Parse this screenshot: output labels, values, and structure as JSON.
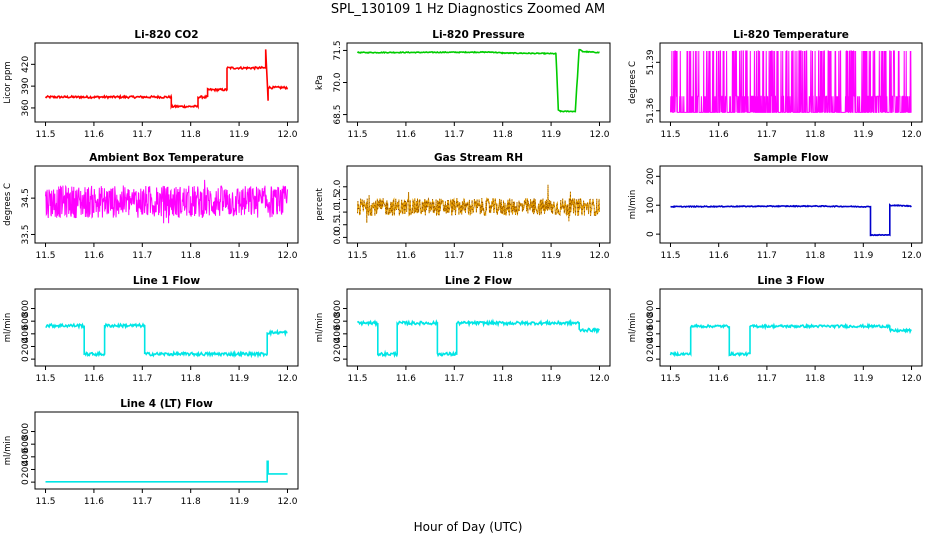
{
  "figure": {
    "title": "SPL_130109  1 Hz Diagnostics Zoomed AM",
    "xlabel": "Hour of Day (UTC)"
  },
  "chart_data": [
    {
      "type": "line",
      "title": "Li-820 CO2",
      "ylabel": "Licor ppm",
      "color": "#ff0000",
      "xlim": [
        11.5,
        12.0
      ],
      "ylim": [
        345,
        445
      ],
      "xticks": [
        11.5,
        11.6,
        11.7,
        11.8,
        11.9,
        12.0
      ],
      "yticks": [
        360,
        390,
        420
      ],
      "noise": 1.5,
      "series": [
        {
          "x": [
            11.5,
            11.76,
            11.76,
            11.815,
            11.815,
            11.835,
            11.835,
            11.875,
            11.875,
            11.955,
            11.955,
            11.96,
            11.96,
            12.0
          ],
          "y": [
            375,
            375,
            362,
            362,
            375,
            375,
            385,
            385,
            415,
            415,
            440,
            370,
            388,
            388
          ]
        }
      ]
    },
    {
      "type": "line",
      "title": "Li-820 Pressure",
      "ylabel": "kPa",
      "color": "#00cc00",
      "xlim": [
        11.5,
        12.0
      ],
      "ylim": [
        68.3,
        71.7
      ],
      "xticks": [
        11.5,
        11.6,
        11.7,
        11.8,
        11.9,
        12.0
      ],
      "yticks": [
        68.5,
        70.0,
        71.5
      ],
      "noise": 0.02,
      "series": [
        {
          "x": [
            11.5,
            11.78,
            11.8,
            11.91,
            11.915,
            11.92,
            11.95,
            11.958,
            11.965,
            12.0
          ],
          "y": [
            71.4,
            71.42,
            71.38,
            71.35,
            68.7,
            68.65,
            68.65,
            71.55,
            71.45,
            71.4
          ]
        }
      ]
    },
    {
      "type": "line",
      "title": "Li-820 Temperature",
      "ylabel": "degrees C",
      "color": "#ff00ff",
      "xlim": [
        11.5,
        12.0
      ],
      "ylim": [
        51.355,
        51.4
      ],
      "xticks": [
        11.5,
        11.6,
        11.7,
        11.8,
        11.9,
        12.0
      ],
      "yticks": [
        51.36,
        51.39
      ],
      "pattern": "quantized",
      "levels": [
        51.359,
        51.369,
        51.397
      ],
      "series": []
    },
    {
      "type": "line",
      "title": "Ambient Box Temperature",
      "ylabel": "degrees C",
      "color": "#ff00ff",
      "xlim": [
        11.5,
        12.0
      ],
      "ylim": [
        33.35,
        35.3
      ],
      "xticks": [
        11.5,
        11.6,
        11.7,
        11.8,
        11.9,
        12.0
      ],
      "yticks": [
        33.5,
        34.5
      ],
      "pattern": "band",
      "center": 34.4,
      "amp": 0.45,
      "spike": 0.35,
      "series": []
    },
    {
      "type": "line",
      "title": "Gas Stream RH",
      "ylabel": "percent",
      "color": "#e6a000",
      "marker_color": "#884400",
      "xlim": [
        11.5,
        12.0
      ],
      "ylim": [
        -0.1,
        2.7
      ],
      "xticks": [
        11.5,
        11.6,
        11.7,
        11.8,
        11.9,
        12.0
      ],
      "yticks": [
        0.0,
        0.5,
        1.0,
        1.5,
        2.0
      ],
      "pattern": "band",
      "center": 1.2,
      "amp": 0.35,
      "spike": 0.9,
      "series": []
    },
    {
      "type": "line",
      "title": "Sample Flow",
      "ylabel": "ml/min",
      "color": "#0000cc",
      "xlim": [
        11.5,
        12.0
      ],
      "ylim": [
        -20,
        225
      ],
      "xticks": [
        11.5,
        11.6,
        11.7,
        11.8,
        11.9,
        12.0
      ],
      "yticks": [
        0,
        100,
        200
      ],
      "noise": 1.5,
      "series": [
        {
          "x": [
            11.5,
            11.8,
            11.9,
            11.915,
            11.915,
            11.955,
            11.955,
            12.0
          ],
          "y": [
            95,
            97,
            95,
            95,
            -3,
            -3,
            100,
            97
          ]
        }
      ]
    },
    {
      "type": "line",
      "title": "Line 1 Flow",
      "ylabel": "ml/min",
      "color": "#00e5e5",
      "xlim": [
        11.5,
        12.0
      ],
      "ylim": [
        -60,
        1060
      ],
      "xticks": [
        11.5,
        11.6,
        11.7,
        11.8,
        11.9,
        12.0
      ],
      "yticks": [
        0,
        200,
        400,
        600,
        800
      ],
      "noise": 25,
      "series": [
        {
          "x": [
            11.5,
            11.58,
            11.58,
            11.622,
            11.622,
            11.705,
            11.705,
            11.958,
            11.958,
            12.0
          ],
          "y": [
            530,
            530,
            80,
            80,
            530,
            530,
            80,
            80,
            420,
            420
          ]
        }
      ]
    },
    {
      "type": "line",
      "title": "Line 2 Flow",
      "ylabel": "ml/min",
      "color": "#00e5e5",
      "xlim": [
        11.5,
        12.0
      ],
      "ylim": [
        -60,
        1060
      ],
      "xticks": [
        11.5,
        11.6,
        11.7,
        11.8,
        11.9,
        12.0
      ],
      "yticks": [
        0,
        200,
        400,
        600,
        800
      ],
      "noise": 25,
      "series": [
        {
          "x": [
            11.5,
            11.542,
            11.542,
            11.582,
            11.582,
            11.665,
            11.665,
            11.705,
            11.705,
            11.958,
            11.958,
            12.0
          ],
          "y": [
            570,
            570,
            80,
            80,
            570,
            570,
            80,
            80,
            570,
            570,
            460,
            460
          ]
        }
      ]
    },
    {
      "type": "line",
      "title": "Line 3 Flow",
      "ylabel": "ml/min",
      "color": "#00e5e5",
      "xlim": [
        11.5,
        12.0
      ],
      "ylim": [
        -60,
        1060
      ],
      "xticks": [
        11.5,
        11.6,
        11.7,
        11.8,
        11.9,
        12.0
      ],
      "yticks": [
        0,
        200,
        400,
        600,
        800
      ],
      "noise": 20,
      "series": [
        {
          "x": [
            11.5,
            11.542,
            11.542,
            11.622,
            11.622,
            11.665,
            11.665,
            11.955,
            11.955,
            12.0
          ],
          "y": [
            80,
            80,
            520,
            520,
            80,
            80,
            520,
            520,
            450,
            450
          ]
        }
      ]
    },
    {
      "type": "line",
      "title": "Line 4 (LT) Flow",
      "ylabel": "ml/min",
      "color": "#00e5e5",
      "xlim": [
        11.5,
        12.0
      ],
      "ylim": [
        -60,
        1060
      ],
      "xticks": [
        11.5,
        11.6,
        11.7,
        11.8,
        11.9,
        12.0
      ],
      "yticks": [
        0,
        200,
        400,
        600,
        800
      ],
      "noise": 0,
      "series": [
        {
          "x": [
            11.5,
            11.958,
            11.958,
            11.96,
            11.96,
            12.0
          ],
          "y": [
            5,
            5,
            330,
            330,
            130,
            130
          ]
        }
      ]
    }
  ]
}
